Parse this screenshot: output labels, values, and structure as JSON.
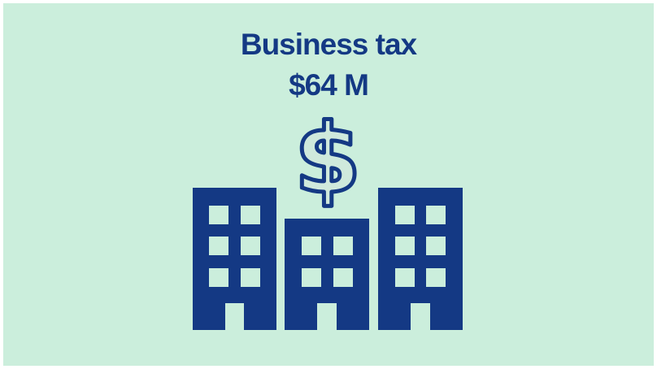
{
  "infographic": {
    "title": "Business tax",
    "amount": "$64 M",
    "icon": "buildings-with-dollar-sign-icon",
    "colors": {
      "background": "#cbeedc",
      "accent": "#143984"
    }
  }
}
